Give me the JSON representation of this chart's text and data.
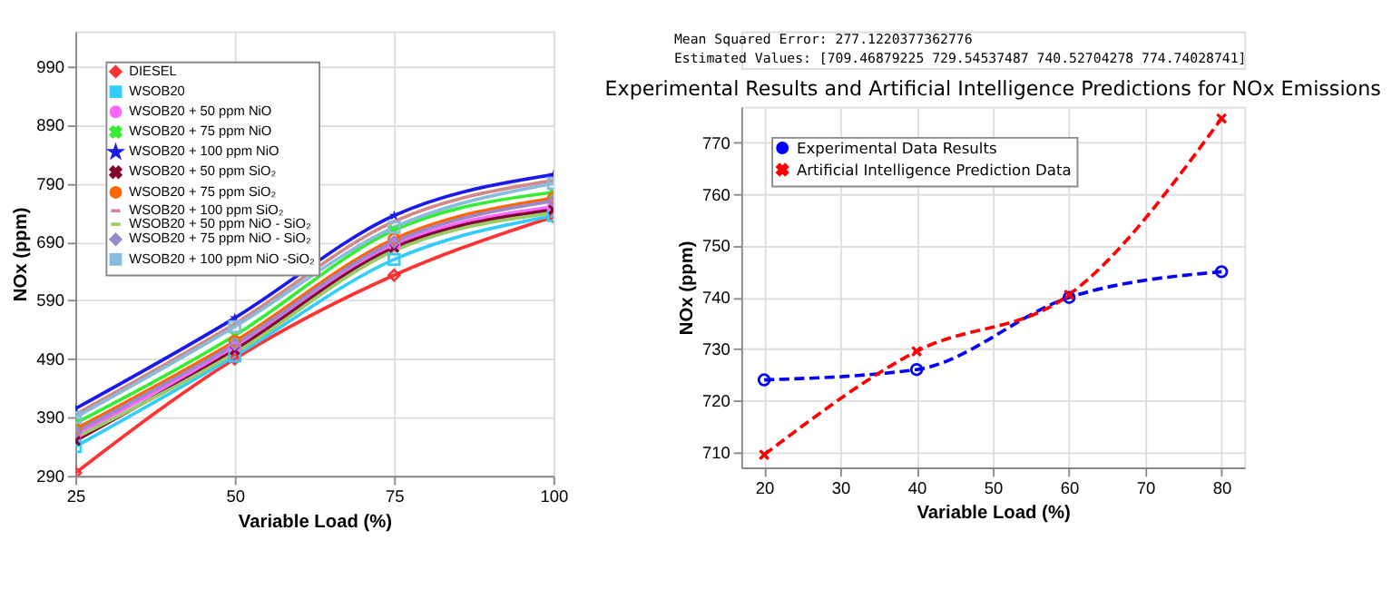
{
  "chart_data": [
    {
      "type": "line",
      "xlabel": "Variable Load (%)",
      "ylabel": "NOx  (ppm)",
      "x": [
        25,
        50,
        75,
        100
      ],
      "xlim": [
        25,
        100
      ],
      "xticks": [
        25,
        50,
        75,
        100
      ],
      "ylim": [
        290,
        1050
      ],
      "yticks": [
        290,
        390,
        490,
        590,
        690,
        790,
        890,
        990
      ],
      "grid": true,
      "legend": "top left",
      "series": [
        {
          "name": "DIESEL",
          "color": "#ff3333",
          "marker": "diamond",
          "values": [
            295,
            490,
            633,
            733
          ]
        },
        {
          "name": "WSOB20",
          "color": "#33ccff",
          "marker": "square",
          "values": [
            340,
            495,
            660,
            735
          ]
        },
        {
          "name": "WSOB20 + 50 ppm NiO",
          "color": "#ff66ff",
          "marker": "circle",
          "values": [
            360,
            510,
            685,
            750
          ]
        },
        {
          "name": "WSOB20 + 75 ppm NiO",
          "color": "#33ee33",
          "marker": "cross",
          "values": [
            380,
            530,
            710,
            775
          ]
        },
        {
          "name": "WSOB20 + 100 ppm NiO",
          "color": "#1a1aee",
          "marker": "star",
          "values": [
            405,
            560,
            735,
            805
          ]
        },
        {
          "name": "WSOB20 + 50 ppm SiO₂",
          "color": "#800030",
          "marker": "cross",
          "values": [
            350,
            505,
            680,
            745
          ]
        },
        {
          "name": "WSOB20 + 75 ppm SiO₂",
          "color": "#ff6600",
          "marker": "circle",
          "values": [
            370,
            520,
            695,
            765
          ]
        },
        {
          "name": "WSOB20 + 100 ppm SiO₂",
          "color": "#d08888",
          "marker": "none",
          "values": [
            395,
            550,
            725,
            795
          ]
        },
        {
          "name": "WSOB20 + 50 ppm NiO - SiO₂",
          "color": "#99cc66",
          "marker": "none",
          "values": [
            355,
            500,
            675,
            740
          ]
        },
        {
          "name": "WSOB20 + 75 ppm NiO - SiO₂",
          "color": "#9988cc",
          "marker": "diamond",
          "values": [
            365,
            515,
            690,
            760
          ]
        },
        {
          "name": "WSOB20 + 100 ppm NiO -SiO₂",
          "color": "#88bbdd",
          "marker": "square",
          "values": [
            390,
            545,
            715,
            790
          ]
        }
      ]
    },
    {
      "type": "line",
      "title": "Experimental Results and Artificial Intelligence Predictions for NOx Emissions",
      "annotations": [
        "Mean Squared Error: 277.1220377362776",
        "Estimated Values: [709.46879225 729.54537487 740.52704278 774.74028741]"
      ],
      "xlabel": "Variable Load (%)",
      "ylabel": "NOx (ppm)",
      "x": [
        20,
        40,
        60,
        80
      ],
      "xlim": [
        17,
        83
      ],
      "xticks": [
        20,
        30,
        40,
        50,
        60,
        70,
        80
      ],
      "ylim": [
        707,
        777
      ],
      "yticks": [
        710,
        720,
        730,
        740,
        750,
        760,
        770
      ],
      "grid": true,
      "legend": "top left",
      "series": [
        {
          "name": "Experimental Data Results",
          "color": "#0000ff",
          "marker": "circle",
          "line_style": "dashed",
          "values": [
            724,
            726,
            740,
            745
          ]
        },
        {
          "name": "Artificial Intelligence Prediction Data",
          "color": "#ff0000",
          "marker": "cross",
          "line_style": "dashed",
          "values": [
            709.46879225,
            729.54537487,
            740.52704278,
            774.74028741
          ]
        }
      ]
    }
  ]
}
